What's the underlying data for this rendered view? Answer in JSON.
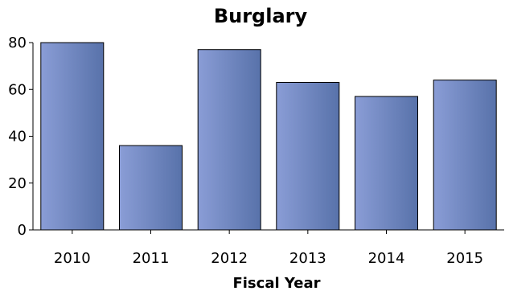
{
  "chart_data": {
    "type": "bar",
    "title": "Burglary",
    "xlabel": "Fiscal Year",
    "ylabel": "",
    "categories": [
      "2010",
      "2011",
      "2012",
      "2013",
      "2014",
      "2015"
    ],
    "values": [
      80,
      36,
      77,
      63,
      57,
      64
    ],
    "ylim": [
      0,
      80
    ],
    "yticks": [
      "0",
      "20",
      "40",
      "60",
      "80"
    ],
    "grid": false,
    "legend": "none",
    "colors": {
      "bar_light": "#8a9dd6",
      "bar_dark": "#5872aa",
      "bar_stroke": "#000000",
      "axis": "#000000"
    }
  }
}
